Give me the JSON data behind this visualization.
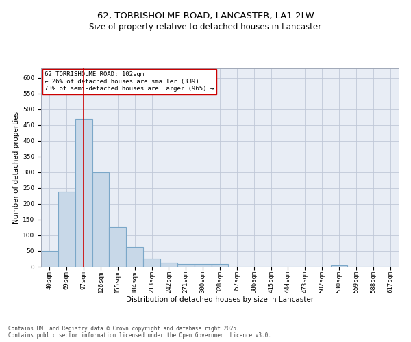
{
  "title": "62, TORRISHOLME ROAD, LANCASTER, LA1 2LW",
  "subtitle": "Size of property relative to detached houses in Lancaster",
  "xlabel": "Distribution of detached houses by size in Lancaster",
  "ylabel": "Number of detached properties",
  "categories": [
    "40sqm",
    "69sqm",
    "97sqm",
    "126sqm",
    "155sqm",
    "184sqm",
    "213sqm",
    "242sqm",
    "271sqm",
    "300sqm",
    "328sqm",
    "357sqm",
    "386sqm",
    "415sqm",
    "444sqm",
    "473sqm",
    "502sqm",
    "530sqm",
    "559sqm",
    "588sqm",
    "617sqm"
  ],
  "values": [
    50,
    238,
    470,
    300,
    127,
    62,
    27,
    14,
    8,
    9,
    8,
    1,
    1,
    1,
    1,
    1,
    1,
    5,
    1,
    1,
    1
  ],
  "bar_color": "#c8d8e8",
  "bar_edgecolor": "#7ba7c8",
  "bar_linewidth": 0.8,
  "grid_color": "#c0c8d8",
  "bg_color": "#e8edf5",
  "red_line_index": 2,
  "red_line_color": "#cc0000",
  "annotation_text": "62 TORRISHOLME ROAD: 102sqm\n← 26% of detached houses are smaller (339)\n73% of semi-detached houses are larger (965) →",
  "annotation_box_color": "#ffffff",
  "annotation_border_color": "#cc0000",
  "footer_line1": "Contains HM Land Registry data © Crown copyright and database right 2025.",
  "footer_line2": "Contains public sector information licensed under the Open Government Licence v3.0.",
  "ylim": [
    0,
    630
  ],
  "yticks": [
    0,
    50,
    100,
    150,
    200,
    250,
    300,
    350,
    400,
    450,
    500,
    550,
    600
  ],
  "title_fontsize": 9.5,
  "subtitle_fontsize": 8.5,
  "axis_label_fontsize": 7.5,
  "tick_fontsize": 6.5,
  "footer_fontsize": 5.5,
  "annotation_fontsize": 6.5
}
